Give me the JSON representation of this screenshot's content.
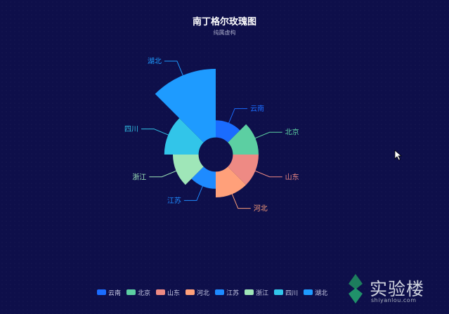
{
  "title": "南丁格尔玫瑰图",
  "subtitle": "纯属虚构",
  "chart_data": {
    "type": "pie",
    "rose_type": "radius",
    "inner_radius_ratio": 0.2,
    "start_angle_deg": 90,
    "clockwise": true,
    "max_value": 40,
    "legend_position": "bottom",
    "categories": [
      "云南",
      "北京",
      "山东",
      "河北",
      "江苏",
      "浙江",
      "四川",
      "湖北"
    ],
    "values": [
      10,
      15,
      15,
      15,
      10,
      15,
      20,
      40
    ],
    "colors": [
      "#1a6cff",
      "#5ccfa2",
      "#ee8a84",
      "#ffa07a",
      "#1e8bff",
      "#9fe6b8",
      "#32c5e9",
      "#1e9bff"
    ]
  },
  "watermark": {
    "text": "实验楼",
    "subtext": "shiyanlou.com"
  }
}
